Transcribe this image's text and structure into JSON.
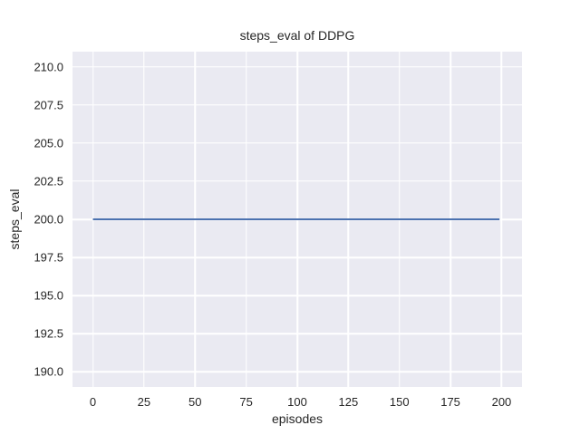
{
  "chart_data": {
    "type": "line",
    "title": "steps_eval of DDPG",
    "xlabel": "episodes",
    "ylabel": "steps_eval",
    "xlim": [
      -10,
      210
    ],
    "ylim": [
      189,
      211
    ],
    "x_ticks": [
      0,
      25,
      50,
      75,
      100,
      125,
      150,
      175,
      200
    ],
    "x_tick_labels": [
      "0",
      "25",
      "50",
      "75",
      "100",
      "125",
      "150",
      "175",
      "200"
    ],
    "y_ticks": [
      190.0,
      192.5,
      195.0,
      197.5,
      200.0,
      202.5,
      205.0,
      207.5,
      210.0
    ],
    "y_tick_labels": [
      "190.0",
      "192.5",
      "195.0",
      "197.5",
      "200.0",
      "202.5",
      "205.0",
      "207.5",
      "210.0"
    ],
    "grid": true,
    "legend": "none",
    "series": [
      {
        "name": "DDPG steps_eval",
        "color": "#4c72b0",
        "x": [
          0,
          199
        ],
        "y": [
          200,
          200
        ],
        "note": "constant value 200 across all evaluation episodes 0-199"
      }
    ],
    "colors": {
      "plot_background": "#eaeaf2",
      "figure_background": "#ffffff",
      "grid": "#ffffff",
      "text": "#262626"
    }
  }
}
